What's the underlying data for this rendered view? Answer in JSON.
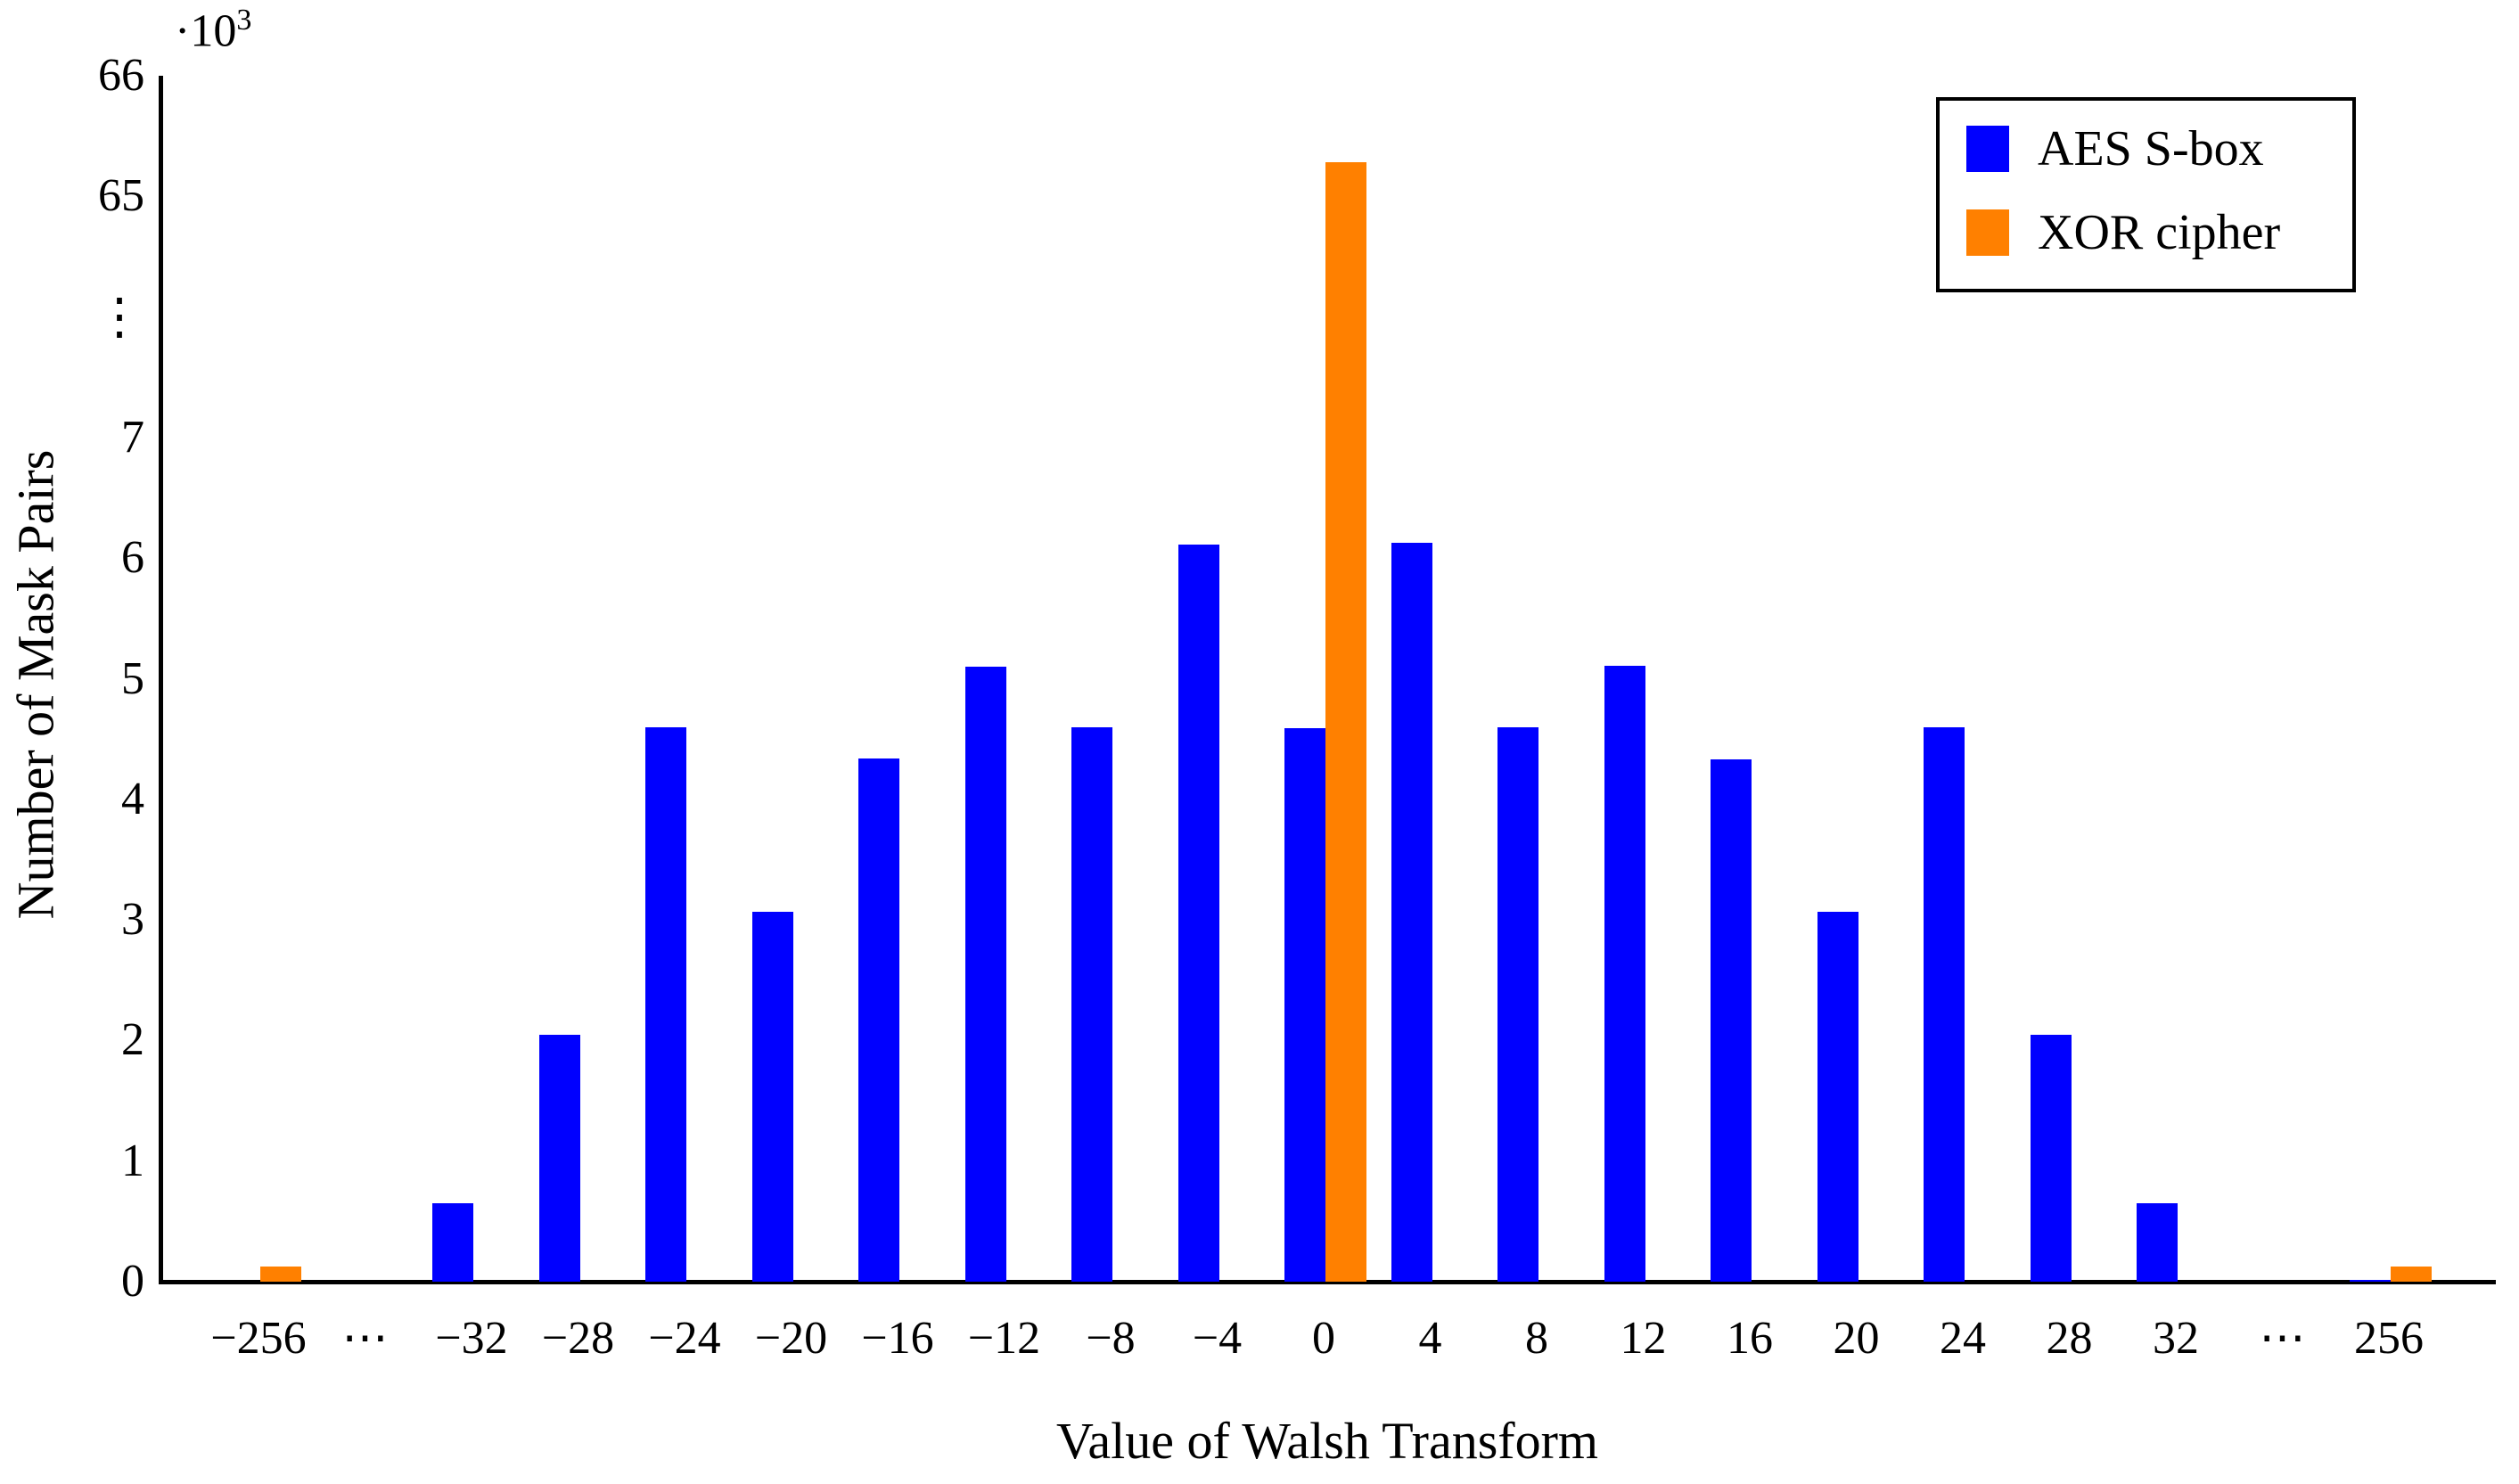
{
  "chart_data": {
    "type": "bar",
    "title": "",
    "xlabel": "Value of Walsh Transform",
    "ylabel": "Number of Mask Pairs",
    "y_exponent_base": "·10",
    "y_exponent_power": "3",
    "grid": false,
    "legend_position": "top-right",
    "broken_y_axis": {
      "lower_range_units": [
        0,
        7
      ],
      "break_symbol": "⋮",
      "upper_tick_values": [
        65,
        66
      ],
      "note": "y shown in thousands; axis breaks between 7·10³ and 65·10³"
    },
    "y_ticks": [
      "0",
      "1",
      "2",
      "3",
      "4",
      "5",
      "6",
      "7",
      "⋮",
      "65",
      "66"
    ],
    "categories": [
      "−256",
      "⋯",
      "−32",
      "−28",
      "−24",
      "−20",
      "−16",
      "−12",
      "−8",
      "−4",
      "0",
      "4",
      "8",
      "12",
      "16",
      "20",
      "24",
      "28",
      "32",
      "⋯",
      "256"
    ],
    "series": [
      {
        "name": "AES S-box",
        "color": "#0000ff",
        "values": [
          0,
          0,
          650,
          2050,
          4600,
          3070,
          4340,
          5100,
          4600,
          6110,
          4590,
          6130,
          4600,
          5110,
          4330,
          3070,
          4600,
          2050,
          650,
          0,
          1
        ]
      },
      {
        "name": "XOR cipher",
        "color": "#ff8000",
        "values": [
          128,
          0,
          0,
          0,
          0,
          0,
          0,
          0,
          0,
          0,
          65280,
          0,
          0,
          0,
          0,
          0,
          0,
          0,
          0,
          0,
          128
        ]
      }
    ]
  }
}
